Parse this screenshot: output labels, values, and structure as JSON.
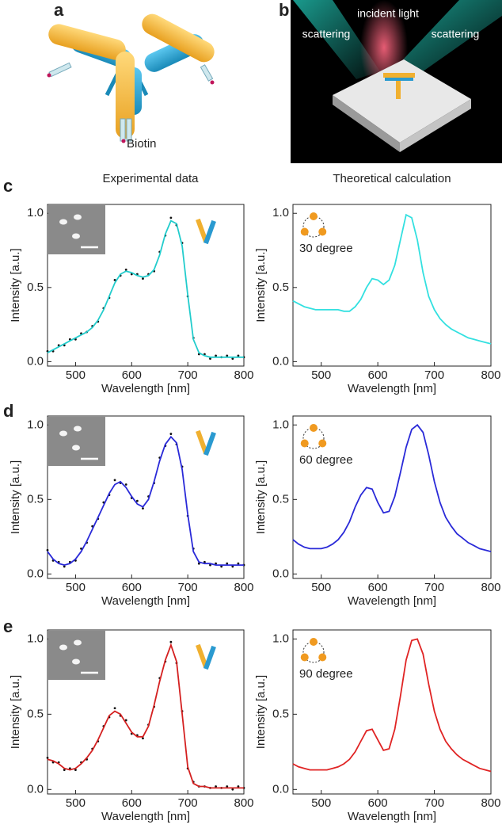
{
  "labels": [
    "a",
    "b",
    "c",
    "d",
    "e"
  ],
  "biotin": "Biotin",
  "incident_light": "incident light",
  "scattering": [
    "scattering",
    "scattering"
  ],
  "column_titles": [
    "Experimental data",
    "Theoretical calculation"
  ],
  "chart_data": [
    {
      "type": "line",
      "xlabel": "Wavelength [nm]",
      "ylabel": "Intensity [a.u.]",
      "x": [
        450,
        460,
        470,
        480,
        490,
        500,
        510,
        520,
        530,
        540,
        550,
        560,
        570,
        580,
        590,
        600,
        610,
        620,
        630,
        640,
        650,
        660,
        670,
        680,
        690,
        700,
        710,
        720,
        730,
        740,
        750,
        760,
        770,
        780,
        790,
        800
      ],
      "series": [
        {
          "style": "points",
          "color": "#111111",
          "values": [
            0.07,
            0.07,
            0.11,
            0.11,
            0.15,
            0.15,
            0.19,
            0.2,
            0.24,
            0.27,
            0.36,
            0.43,
            0.55,
            0.58,
            0.62,
            0.59,
            0.59,
            0.56,
            0.59,
            0.61,
            0.74,
            0.85,
            0.97,
            0.92,
            0.8,
            0.44,
            0.16,
            0.05,
            0.05,
            0.02,
            0.04,
            0.03,
            0.04,
            0.02,
            0.04,
            0.03
          ]
        },
        {
          "style": "line",
          "color": "#22cccc",
          "values": [
            0.06,
            0.08,
            0.1,
            0.12,
            0.14,
            0.16,
            0.18,
            0.2,
            0.23,
            0.28,
            0.35,
            0.44,
            0.53,
            0.59,
            0.61,
            0.6,
            0.58,
            0.57,
            0.58,
            0.62,
            0.72,
            0.86,
            0.95,
            0.93,
            0.78,
            0.45,
            0.15,
            0.06,
            0.04,
            0.03,
            0.03,
            0.03,
            0.03,
            0.03,
            0.03,
            0.03
          ]
        }
      ],
      "xlim": [
        450,
        800
      ],
      "ylim": [
        -0.03,
        1.06
      ],
      "xticks": [
        500,
        600,
        700,
        800
      ],
      "yticks": [
        {
          "value": 0,
          "label": "0.0"
        },
        {
          "value": 0.5,
          "label": "0.5"
        },
        {
          "value": 1,
          "label": "1.0"
        }
      ]
    },
    {
      "type": "line",
      "xlabel": "Wavelength [nm]",
      "ylabel": "Intensity [a.u.]",
      "annotation": "30 degree",
      "x": [
        450,
        460,
        470,
        480,
        490,
        500,
        510,
        520,
        530,
        540,
        550,
        560,
        570,
        580,
        590,
        600,
        610,
        620,
        630,
        640,
        650,
        660,
        670,
        680,
        690,
        700,
        710,
        720,
        730,
        740,
        750,
        760,
        770,
        780,
        790,
        800
      ],
      "series": [
        {
          "style": "line",
          "color": "#33e0e0",
          "values": [
            0.41,
            0.39,
            0.37,
            0.36,
            0.35,
            0.35,
            0.35,
            0.35,
            0.35,
            0.34,
            0.34,
            0.37,
            0.42,
            0.5,
            0.56,
            0.55,
            0.52,
            0.55,
            0.65,
            0.82,
            0.99,
            0.97,
            0.82,
            0.6,
            0.44,
            0.35,
            0.29,
            0.25,
            0.22,
            0.2,
            0.18,
            0.16,
            0.15,
            0.14,
            0.13,
            0.12
          ]
        }
      ],
      "xlim": [
        450,
        800
      ],
      "ylim": [
        -0.03,
        1.06
      ],
      "xticks": [
        500,
        600,
        700,
        800
      ],
      "yticks": [
        {
          "value": 0,
          "label": "0.0"
        },
        {
          "value": 0.5,
          "label": "0.5"
        },
        {
          "value": 1,
          "label": "1.0"
        }
      ]
    },
    {
      "type": "line",
      "xlabel": "Wavelength [nm]",
      "ylabel": "Intensity [a.u.]",
      "x": [
        450,
        460,
        470,
        480,
        490,
        500,
        510,
        520,
        530,
        540,
        550,
        560,
        570,
        580,
        590,
        600,
        610,
        620,
        630,
        640,
        650,
        660,
        670,
        680,
        690,
        700,
        710,
        720,
        730,
        740,
        750,
        760,
        770,
        780,
        790,
        800
      ],
      "series": [
        {
          "style": "points",
          "color": "#111111",
          "values": [
            0.16,
            0.09,
            0.08,
            0.05,
            0.08,
            0.09,
            0.17,
            0.21,
            0.32,
            0.37,
            0.48,
            0.53,
            0.63,
            0.61,
            0.6,
            0.51,
            0.49,
            0.44,
            0.52,
            0.61,
            0.78,
            0.86,
            0.94,
            0.87,
            0.72,
            0.39,
            0.17,
            0.07,
            0.08,
            0.06,
            0.07,
            0.05,
            0.07,
            0.05,
            0.07,
            0.06
          ]
        },
        {
          "style": "line",
          "color": "#2a2ad8",
          "values": [
            0.15,
            0.1,
            0.07,
            0.06,
            0.07,
            0.1,
            0.15,
            0.22,
            0.3,
            0.38,
            0.46,
            0.54,
            0.6,
            0.62,
            0.58,
            0.52,
            0.47,
            0.45,
            0.5,
            0.62,
            0.76,
            0.87,
            0.92,
            0.88,
            0.7,
            0.4,
            0.15,
            0.08,
            0.07,
            0.07,
            0.06,
            0.06,
            0.06,
            0.06,
            0.06,
            0.06
          ]
        }
      ],
      "xlim": [
        450,
        800
      ],
      "ylim": [
        -0.03,
        1.06
      ],
      "xticks": [
        500,
        600,
        700,
        800
      ],
      "yticks": [
        {
          "value": 0,
          "label": "0.0"
        },
        {
          "value": 0.5,
          "label": "0.5"
        },
        {
          "value": 1,
          "label": "1.0"
        }
      ]
    },
    {
      "type": "line",
      "xlabel": "Wavelength [nm]",
      "ylabel": "Intensity [a.u.]",
      "annotation": "60 degree",
      "x": [
        450,
        460,
        470,
        480,
        490,
        500,
        510,
        520,
        530,
        540,
        550,
        560,
        570,
        580,
        590,
        600,
        610,
        620,
        630,
        640,
        650,
        660,
        670,
        680,
        690,
        700,
        710,
        720,
        730,
        740,
        750,
        760,
        770,
        780,
        790,
        800
      ],
      "series": [
        {
          "style": "line",
          "color": "#2a2ad8",
          "values": [
            0.23,
            0.2,
            0.18,
            0.17,
            0.17,
            0.17,
            0.18,
            0.2,
            0.23,
            0.28,
            0.35,
            0.45,
            0.53,
            0.58,
            0.57,
            0.48,
            0.41,
            0.42,
            0.52,
            0.68,
            0.85,
            0.97,
            1.0,
            0.95,
            0.8,
            0.62,
            0.48,
            0.38,
            0.32,
            0.27,
            0.24,
            0.21,
            0.19,
            0.17,
            0.16,
            0.15
          ]
        }
      ],
      "xlim": [
        450,
        800
      ],
      "ylim": [
        -0.03,
        1.06
      ],
      "xticks": [
        500,
        600,
        700,
        800
      ],
      "yticks": [
        {
          "value": 0,
          "label": "0.0"
        },
        {
          "value": 0.5,
          "label": "0.5"
        },
        {
          "value": 1,
          "label": "1.0"
        }
      ]
    },
    {
      "type": "line",
      "xlabel": "Wavelength [nm]",
      "ylabel": "Intensity [a.u.]",
      "x": [
        450,
        460,
        470,
        480,
        490,
        500,
        510,
        520,
        530,
        540,
        550,
        560,
        570,
        580,
        590,
        600,
        610,
        620,
        630,
        640,
        650,
        660,
        670,
        680,
        690,
        700,
        710,
        720,
        730,
        740,
        750,
        760,
        770,
        780,
        790,
        800
      ],
      "series": [
        {
          "style": "points",
          "color": "#111111",
          "values": [
            0.21,
            0.18,
            0.18,
            0.13,
            0.14,
            0.13,
            0.18,
            0.2,
            0.27,
            0.32,
            0.42,
            0.48,
            0.54,
            0.49,
            0.46,
            0.37,
            0.36,
            0.34,
            0.43,
            0.55,
            0.74,
            0.85,
            0.98,
            0.84,
            0.52,
            0.14,
            0.05,
            0.02,
            0.02,
            0.01,
            0.02,
            0.01,
            0.02,
            0.0,
            0.02,
            0.01
          ]
        },
        {
          "style": "line",
          "color": "#d42020",
          "values": [
            0.2,
            0.19,
            0.17,
            0.14,
            0.13,
            0.14,
            0.17,
            0.21,
            0.26,
            0.33,
            0.41,
            0.49,
            0.52,
            0.5,
            0.44,
            0.38,
            0.35,
            0.35,
            0.42,
            0.56,
            0.72,
            0.86,
            0.96,
            0.85,
            0.5,
            0.15,
            0.04,
            0.02,
            0.02,
            0.01,
            0.01,
            0.01,
            0.01,
            0.01,
            0.01,
            0.01
          ]
        }
      ],
      "xlim": [
        450,
        800
      ],
      "ylim": [
        -0.03,
        1.06
      ],
      "xticks": [
        500,
        600,
        700,
        800
      ],
      "yticks": [
        {
          "value": 0,
          "label": "0.0"
        },
        {
          "value": 0.5,
          "label": "0.5"
        },
        {
          "value": 1,
          "label": "1.0"
        }
      ]
    },
    {
      "type": "line",
      "xlabel": "Wavelength [nm]",
      "ylabel": "Intensity [a.u.]",
      "annotation": "90 degree",
      "x": [
        450,
        460,
        470,
        480,
        490,
        500,
        510,
        520,
        530,
        540,
        550,
        560,
        570,
        580,
        590,
        600,
        610,
        620,
        630,
        640,
        650,
        660,
        670,
        680,
        690,
        700,
        710,
        720,
        730,
        740,
        750,
        760,
        770,
        780,
        790,
        800
      ],
      "series": [
        {
          "style": "line",
          "color": "#e02424",
          "values": [
            0.17,
            0.15,
            0.14,
            0.13,
            0.13,
            0.13,
            0.13,
            0.14,
            0.15,
            0.17,
            0.2,
            0.25,
            0.32,
            0.39,
            0.4,
            0.33,
            0.26,
            0.27,
            0.4,
            0.62,
            0.86,
            0.99,
            1.0,
            0.9,
            0.7,
            0.52,
            0.4,
            0.32,
            0.27,
            0.23,
            0.2,
            0.18,
            0.16,
            0.14,
            0.13,
            0.12
          ]
        }
      ],
      "xlim": [
        450,
        800
      ],
      "ylim": [
        -0.03,
        1.06
      ],
      "xticks": [
        500,
        600,
        700,
        800
      ],
      "yticks": [
        {
          "value": 0,
          "label": "0.0"
        },
        {
          "value": 0.5,
          "label": "0.5"
        },
        {
          "value": 1,
          "label": "1.0"
        }
      ]
    }
  ]
}
